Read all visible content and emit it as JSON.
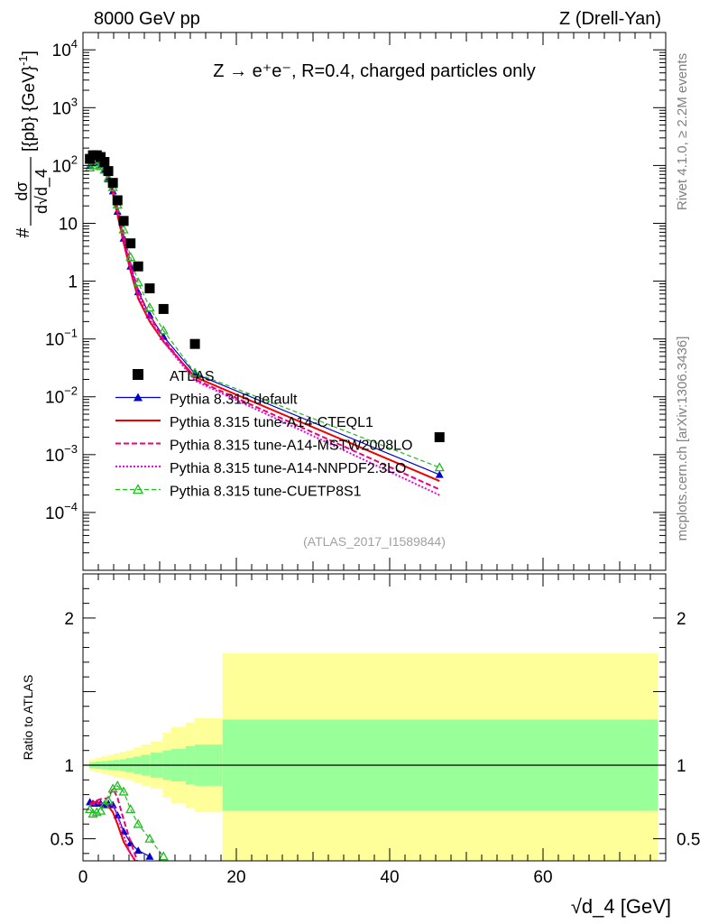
{
  "header": {
    "energy": "8000 GeV pp",
    "process": "Z (Drell-Yan)",
    "side_rivet": "Rivet 4.1.0, ≥ 2.2M events",
    "side_site": "mcplots.cern.ch [arXiv:1306.3436]",
    "analysis_id": "(ATLAS_2017_I1589844)"
  },
  "colors": {
    "data": "#000000",
    "default": "#0000cc",
    "cteql1": "#ee0000",
    "mstw": "#ee0077",
    "nnpdf": "#ee00ee",
    "cuetp8s1": "#22bb22",
    "band_inner": "#99ff99",
    "band_outer": "#ffff99"
  },
  "chart_data": [
    {
      "type": "scatter",
      "title": "Z → e⁺e⁻, R=0.4, charged particles only",
      "xlabel": "√d_4 [GeV]",
      "ylabel": "dσ/d√d_4 [pb GeV⁻¹]",
      "ylabel_parts": {
        "prefix": "#",
        "num": "dσ",
        "den": "d√d_4",
        "suffix": "[{pb} {GeV}",
        "exp": "-1",
        "close": "]"
      },
      "xlim": [
        0,
        76
      ],
      "ylim_log10": [
        -5,
        4.3
      ],
      "yscale": "log",
      "y_ticks": [
        {
          "v": 4,
          "base": "10",
          "exp": "4"
        },
        {
          "v": 3,
          "base": "10",
          "exp": "3"
        },
        {
          "v": 2,
          "base": "10",
          "exp": "2"
        },
        {
          "v": 1,
          "base": "10",
          "exp": ""
        },
        {
          "v": 0,
          "base": "1",
          "exp": ""
        },
        {
          "v": -1,
          "base": "10",
          "exp": "−1"
        },
        {
          "v": -2,
          "base": "10",
          "exp": "−2"
        },
        {
          "v": -3,
          "base": "10",
          "exp": "−3"
        },
        {
          "v": -4,
          "base": "10",
          "exp": "−4"
        }
      ],
      "legend": [
        {
          "key": "data",
          "label": "ATLAS"
        },
        {
          "key": "default",
          "label": "Pythia 8.315 default"
        },
        {
          "key": "cteql1",
          "label": "Pythia 8.315 tune-A14-CTEQL1"
        },
        {
          "key": "mstw",
          "label": "Pythia 8.315 tune-A14-MSTW2008LO"
        },
        {
          "key": "nnpdf",
          "label": "Pythia 8.315 tune-A14-NNPDF2.3LO"
        },
        {
          "key": "cuetp8s1",
          "label": "Pythia 8.315 tune-CUETP8S1"
        }
      ],
      "data": {
        "x": [
          0.9,
          1.3,
          1.8,
          2.3,
          2.8,
          3.3,
          3.9,
          4.5,
          5.3,
          6.2,
          7.2,
          8.7,
          10.5,
          14.6,
          46.5
        ],
        "y": [
          130,
          150,
          150,
          140,
          115,
          80,
          50,
          25,
          11,
          4.5,
          1.8,
          0.75,
          0.33,
          0.082,
          0.002
        ]
      },
      "series": [
        {
          "key": "default",
          "name": "Pythia 8.315 default",
          "x": [
            0.9,
            1.3,
            1.8,
            2.3,
            2.8,
            3.3,
            3.9,
            4.5,
            5.3,
            6.2,
            7.2,
            8.7,
            10.5,
            14.6,
            46.5
          ],
          "y": [
            100,
            112,
            112,
            103,
            84,
            58,
            36,
            16,
            5.5,
            1.8,
            0.65,
            0.26,
            0.11,
            0.025,
            0.00045
          ]
        },
        {
          "key": "cteql1",
          "name": "Pythia 8.315 tune-A14-CTEQL1",
          "x": [
            0.9,
            1.3,
            1.8,
            2.3,
            2.8,
            3.3,
            3.9,
            4.5,
            5.3,
            6.2,
            7.2,
            8.7,
            10.5,
            14.6,
            46.5
          ],
          "y": [
            100,
            112,
            112,
            103,
            85,
            56,
            33,
            14,
            4.6,
            1.5,
            0.5,
            0.2,
            0.09,
            0.022,
            0.00035
          ]
        },
        {
          "key": "mstw",
          "name": "Pythia 8.315 tune-A14-MSTW2008LO",
          "x": [
            0.9,
            1.3,
            1.8,
            2.3,
            2.8,
            3.3,
            3.9,
            4.5,
            5.3,
            6.2,
            7.2,
            8.7,
            10.5,
            14.6,
            46.5
          ],
          "y": [
            98,
            110,
            110,
            102,
            87,
            61,
            40,
            18,
            6.2,
            2.0,
            0.68,
            0.25,
            0.1,
            0.02,
            0.00025
          ]
        },
        {
          "key": "nnpdf",
          "name": "Pythia 8.315 tune-A14-NNPDF2.3LO",
          "x": [
            0.9,
            1.3,
            1.8,
            2.3,
            2.8,
            3.3,
            3.9,
            4.5,
            5.3,
            6.2,
            7.2,
            8.7,
            10.5,
            14.6,
            46.5
          ],
          "y": [
            97,
            109,
            109,
            101,
            85,
            58,
            37,
            16,
            5.4,
            1.7,
            0.58,
            0.22,
            0.09,
            0.019,
            0.0002
          ]
        },
        {
          "key": "cuetp8s1",
          "name": "Pythia 8.315 tune-CUETP8S1",
          "x": [
            0.9,
            1.3,
            1.8,
            2.3,
            2.8,
            3.3,
            3.9,
            4.5,
            5.3,
            6.2,
            7.2,
            8.7,
            10.5,
            14.6,
            46.5
          ],
          "y": [
            92,
            100,
            100,
            97,
            84,
            61,
            42,
            21,
            7.8,
            2.6,
            0.95,
            0.35,
            0.14,
            0.026,
            0.0006
          ]
        }
      ]
    },
    {
      "type": "line",
      "ylabel": "Ratio to ATLAS",
      "xlabel": "√d_4 [GeV]",
      "xlim": [
        0,
        76
      ],
      "ylim": [
        0.35,
        2.3
      ],
      "y_ticks": [
        {
          "v": 0.5,
          "label": "0.5"
        },
        {
          "v": 1,
          "label": "1"
        },
        {
          "v": 2,
          "label": "2"
        }
      ],
      "x_ticks": [
        {
          "v": 0,
          "label": "0"
        },
        {
          "v": 20,
          "label": "20"
        },
        {
          "v": 40,
          "label": "40"
        },
        {
          "v": 60,
          "label": "60"
        }
      ],
      "band_bins": [
        0.8,
        1.6,
        2.4,
        3.2,
        4.0,
        4.8,
        5.6,
        6.6,
        7.6,
        8.8,
        10.4,
        11.5,
        13.4,
        14.6,
        18.2,
        75
      ],
      "band_inner": [
        0.02,
        0.025,
        0.028,
        0.032,
        0.036,
        0.04,
        0.048,
        0.058,
        0.07,
        0.085,
        0.1,
        0.11,
        0.13,
        0.14,
        0.31
      ],
      "band_outer": [
        0.04,
        0.05,
        0.06,
        0.07,
        0.08,
        0.09,
        0.1,
        0.12,
        0.14,
        0.16,
        0.22,
        0.26,
        0.29,
        0.32,
        0.76
      ],
      "ratios": [
        {
          "key": "default",
          "x": [
            0.9,
            1.3,
            1.8,
            2.3,
            2.8,
            3.3,
            3.9,
            4.5,
            5.3,
            6.2,
            7.2,
            8.7
          ],
          "y": [
            0.75,
            0.74,
            0.74,
            0.74,
            0.73,
            0.74,
            0.73,
            0.66,
            0.55,
            0.47,
            0.42,
            0.38
          ]
        },
        {
          "key": "cteql1",
          "x": [
            0.9,
            1.3,
            1.8,
            2.3,
            2.8,
            3.3,
            3.9,
            4.5,
            5.3,
            6.2,
            7.2
          ],
          "y": [
            0.74,
            0.75,
            0.75,
            0.74,
            0.74,
            0.72,
            0.68,
            0.6,
            0.48,
            0.4,
            0.32
          ]
        },
        {
          "key": "mstw",
          "x": [
            0.9,
            1.3,
            1.8,
            2.3,
            2.8,
            3.3,
            3.9,
            4.5,
            5.3,
            6.2,
            7.2
          ],
          "y": [
            0.73,
            0.74,
            0.76,
            0.77,
            0.77,
            0.78,
            0.84,
            0.78,
            0.63,
            0.48,
            0.33
          ]
        },
        {
          "key": "nnpdf",
          "x": [
            0.9,
            1.3,
            1.8,
            2.3,
            2.8,
            3.3,
            3.9,
            4.5,
            5.3,
            6.2,
            7.2
          ],
          "y": [
            0.72,
            0.73,
            0.74,
            0.74,
            0.74,
            0.73,
            0.73,
            0.66,
            0.52,
            0.4,
            0.32
          ]
        },
        {
          "key": "cuetp8s1",
          "x": [
            0.9,
            1.3,
            1.8,
            2.3,
            2.8,
            3.3,
            3.9,
            4.5,
            5.3,
            6.2,
            7.2,
            8.7,
            10.5
          ],
          "y": [
            0.7,
            0.67,
            0.68,
            0.69,
            0.73,
            0.76,
            0.84,
            0.86,
            0.82,
            0.7,
            0.6,
            0.5,
            0.38
          ]
        }
      ]
    }
  ]
}
